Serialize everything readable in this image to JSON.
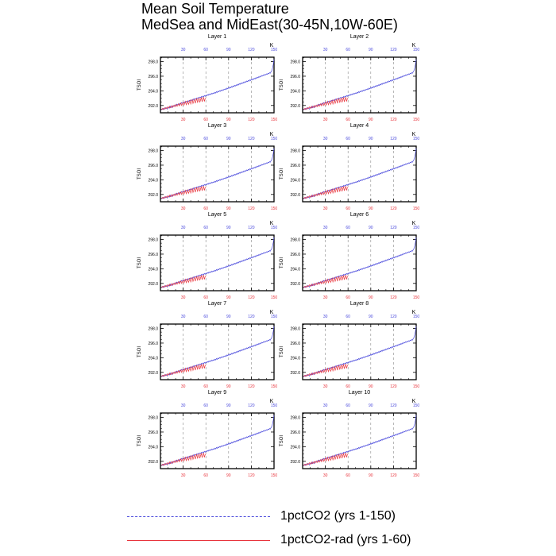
{
  "figure": {
    "title_line1": "Mean Soil Temperature",
    "title_line2": "MedSea and MidEast(30-45N,10W-60E)"
  },
  "colors": {
    "series_a": "#4a4adc",
    "series_b": "#e8343c",
    "axis": "#000000",
    "grid": "#8a8a8a"
  },
  "legend": [
    {
      "label": "1pctCO2 (yrs 1-150)",
      "color": "#4a4adc",
      "style": "dashed"
    },
    {
      "label": "1pctCO2-rad (yrs 1-60)",
      "color": "#e8343c",
      "style": "solid"
    }
  ],
  "chart_data": {
    "type": "line",
    "ylabel": "TSOI",
    "units_label": "K",
    "ylim": [
      291.0,
      298.6
    ],
    "yticks": [
      292.0,
      294.0,
      296.0,
      298.0
    ],
    "ytick_labels": [
      "292.0",
      "294.0",
      "296.0",
      "298.0"
    ],
    "top_axis": {
      "xlim": [
        0,
        150
      ],
      "ticks": [
        30,
        60,
        90,
        120,
        150
      ],
      "tick_labels": [
        "30",
        "60",
        "90",
        "120",
        "150"
      ],
      "color": "#4a4adc"
    },
    "bottom_axis": {
      "xlim": [
        0,
        150
      ],
      "ticks": [
        30,
        60,
        90,
        120,
        150
      ],
      "tick_labels": [
        "30",
        "60",
        "90",
        "120",
        "150"
      ],
      "color": "#e8343c"
    },
    "grid_x": [
      30,
      60,
      90,
      120
    ],
    "panels": [
      {
        "title": "Layer 1"
      },
      {
        "title": "Layer 2"
      },
      {
        "title": "Layer 3"
      },
      {
        "title": "Layer 4"
      },
      {
        "title": "Layer 5"
      },
      {
        "title": "Layer 6"
      },
      {
        "title": "Layer 7"
      },
      {
        "title": "Layer 8"
      },
      {
        "title": "Layer 9"
      },
      {
        "title": "Layer 10"
      }
    ],
    "series": [
      {
        "name": "1pctCO2 (yrs 1-150)",
        "x_start": 1,
        "values": [
          291.38,
          291.52,
          291.45,
          291.6,
          291.48,
          291.55,
          291.7,
          291.62,
          291.5,
          291.72,
          291.8,
          291.65,
          291.9,
          291.78,
          291.7,
          291.95,
          291.85,
          292.02,
          291.9,
          292.1,
          292.0,
          292.18,
          292.05,
          292.25,
          292.15,
          292.3,
          292.2,
          292.4,
          292.28,
          292.45,
          292.35,
          292.5,
          292.4,
          292.58,
          292.48,
          292.62,
          292.55,
          292.7,
          292.6,
          292.75,
          292.68,
          292.82,
          292.72,
          292.9,
          292.8,
          292.95,
          292.85,
          293.02,
          292.95,
          293.1,
          293.0,
          293.15,
          293.08,
          293.22,
          293.12,
          293.28,
          293.2,
          293.35,
          293.25,
          293.4,
          293.32,
          293.48,
          293.38,
          293.55,
          293.45,
          293.6,
          293.52,
          293.68,
          293.58,
          293.72,
          293.65,
          293.8,
          293.7,
          293.88,
          293.78,
          293.95,
          293.85,
          294.02,
          293.92,
          294.1,
          294.0,
          294.15,
          294.08,
          294.22,
          294.15,
          294.3,
          294.2,
          294.38,
          294.28,
          294.45,
          294.35,
          294.52,
          294.42,
          294.6,
          294.5,
          294.68,
          294.58,
          294.75,
          294.65,
          294.82,
          294.72,
          294.9,
          294.8,
          294.98,
          294.88,
          295.05,
          294.95,
          295.12,
          295.02,
          295.2,
          295.1,
          295.28,
          295.18,
          295.35,
          295.25,
          295.42,
          295.32,
          295.5,
          295.4,
          295.58,
          295.48,
          295.65,
          295.55,
          295.72,
          295.62,
          295.8,
          295.7,
          295.88,
          295.78,
          295.95,
          295.85,
          296.02,
          295.95,
          296.1,
          296.02,
          296.18,
          296.1,
          296.25,
          296.18,
          296.32,
          296.25,
          296.4,
          296.32,
          296.48,
          296.4,
          296.6,
          296.75,
          297.1,
          297.6,
          298.3
        ]
      },
      {
        "name": "1pctCO2-rad (yrs 1-60)",
        "x_start": 1,
        "values": [
          291.42,
          291.5,
          291.6,
          291.45,
          291.58,
          291.7,
          291.55,
          291.66,
          291.8,
          291.6,
          291.72,
          291.9,
          291.68,
          291.82,
          291.98,
          291.74,
          291.9,
          292.05,
          291.82,
          291.96,
          292.15,
          291.88,
          292.04,
          292.25,
          291.95,
          292.12,
          292.35,
          292.0,
          292.2,
          292.45,
          292.05,
          292.28,
          292.55,
          292.1,
          292.34,
          292.62,
          292.15,
          292.4,
          292.7,
          292.2,
          292.5,
          292.8,
          292.28,
          292.58,
          292.9,
          292.3,
          292.62,
          292.98,
          292.38,
          292.7,
          293.05,
          292.42,
          292.78,
          293.1,
          292.5,
          292.85,
          293.15,
          292.55,
          292.9,
          293.02
        ]
      }
    ]
  }
}
